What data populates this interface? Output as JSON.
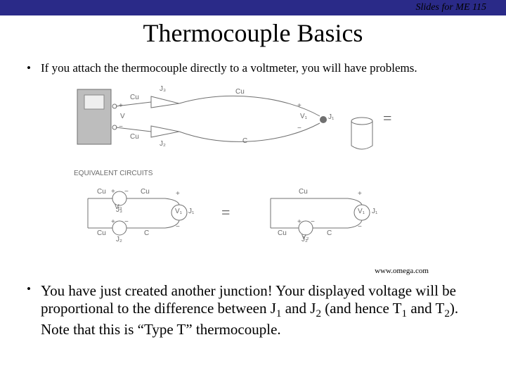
{
  "header": {
    "bar_color": "#2a2a88",
    "right_text": "Slides for ME 115"
  },
  "title": "Thermocouple Basics",
  "bullets": {
    "first": "If you attach the thermocouple directly to a voltmeter, you will have problems.",
    "second_html": "You have just created another junction! Your displayed voltage will be proportional to the difference between J<span class='sub'>1</span> and J<span class='sub'>2</span> (and hence T<span class='sub'>1</span> and T<span class='sub'>2</span>). Note that this is  “Type T” thermocouple."
  },
  "source": "www.omega.com",
  "diagram": {
    "stroke": "#707070",
    "fill_gray": "#bdbdbd",
    "label_color": "#6b6b6b",
    "labels": {
      "eqcirc": "EQUIVALENT CIRCUITS",
      "Cu": "Cu",
      "C": "C",
      "J1": "J₁",
      "J2": "J₂",
      "J3": "J₃",
      "V": "V",
      "V1": "V₁",
      "V2": "V₂",
      "V3": "V₃",
      "plus": "+",
      "minus": "−"
    }
  }
}
